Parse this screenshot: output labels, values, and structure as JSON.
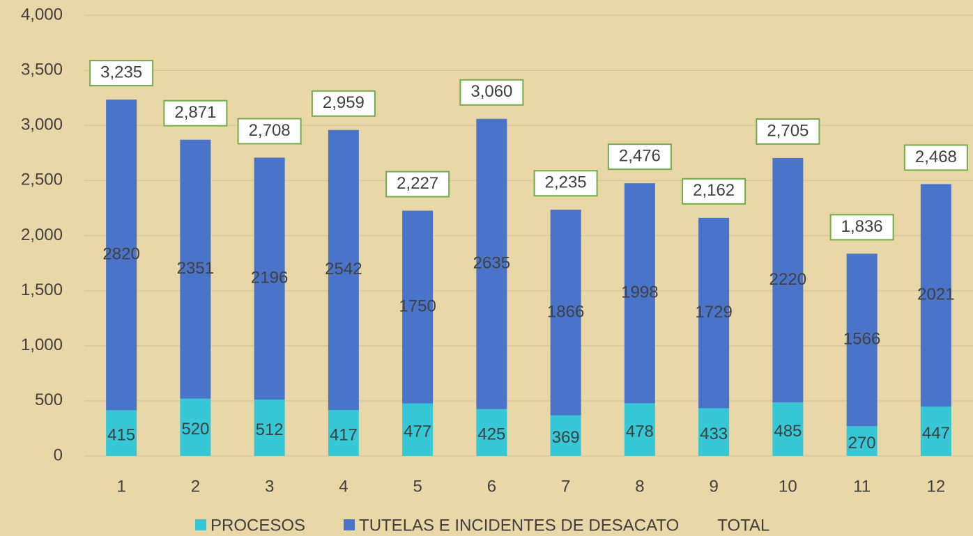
{
  "chart_data": {
    "type": "stacked_bar",
    "categories": [
      "1",
      "2",
      "3",
      "4",
      "5",
      "6",
      "7",
      "8",
      "9",
      "10",
      "11",
      "12"
    ],
    "series": [
      {
        "name": "PROCESOS",
        "color": "#36c8d6",
        "values": [
          415,
          520,
          512,
          417,
          477,
          425,
          369,
          478,
          433,
          485,
          270,
          447
        ]
      },
      {
        "name": "TUTELAS E INCIDENTES DE DESACATO",
        "color": "#4a74c9",
        "values": [
          2820,
          2351,
          2196,
          2542,
          1750,
          2635,
          1866,
          1998,
          1729,
          2220,
          1566,
          2021
        ]
      },
      {
        "name": "TOTAL",
        "values": [
          3235,
          2871,
          2708,
          2959,
          2227,
          3060,
          2235,
          2476,
          2162,
          2705,
          1836,
          2468
        ],
        "value_labels": [
          "3,235",
          "2,871",
          "2,708",
          "2,959",
          "2,227",
          "3,060",
          "2,235",
          "2,476",
          "2,162",
          "2,705",
          "1,836",
          "2,468"
        ]
      }
    ],
    "ylim": [
      0,
      4000
    ],
    "yticks": [
      0,
      500,
      {
        "value": 1000,
        "label": "1,000"
      },
      {
        "value": 1500,
        "label": "1,500"
      },
      {
        "value": 2000,
        "label": "2,000"
      },
      {
        "value": 2500,
        "label": "2,500"
      },
      {
        "value": 3000,
        "label": "3,000"
      },
      {
        "value": 3500,
        "label": "3,500"
      },
      {
        "value": 4000,
        "label": "4,000"
      }
    ],
    "grid": true,
    "legend": "bottom"
  }
}
